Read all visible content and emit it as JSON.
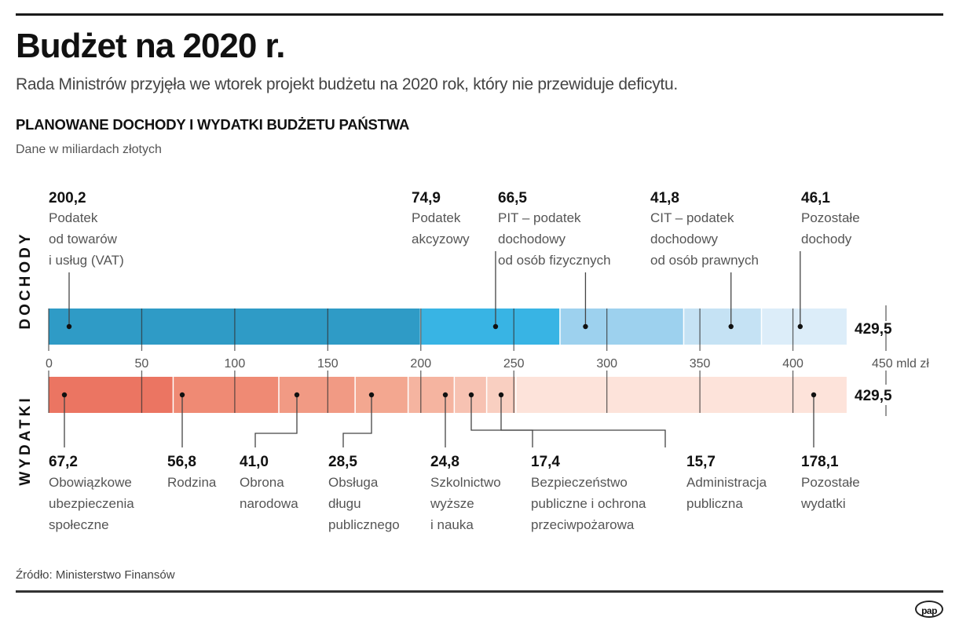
{
  "header": {
    "title": "Budżet na 2020 r.",
    "subtitle": "Rada Ministrów przyjęła we wtorek projekt budżetu na 2020 rok, który nie przewiduje deficytu."
  },
  "footer": {
    "source": "Źródło: Ministerstwo Finansów",
    "logo": "pap"
  },
  "chart_data": {
    "type": "bar",
    "orientation": "horizontal-stacked",
    "title": "PLANOWANE DOCHODY I WYDATKI BUDŻETU PAŃSTWA",
    "subtitle": "Dane w miliardach złotych",
    "xlim": [
      0,
      450
    ],
    "x_ticks": [
      0,
      50,
      100,
      150,
      200,
      250,
      300,
      350,
      400,
      450
    ],
    "x_tick_labels": [
      "0",
      "50",
      "100",
      "150",
      "200",
      "250",
      "300",
      "350",
      "400",
      "450 mld zł"
    ],
    "unit": "mld zł",
    "series": [
      {
        "name": "DOCHODY",
        "total": 429.5,
        "total_label": "429,5",
        "segments": [
          {
            "value": 200.2,
            "value_label": "200,2",
            "label_lines": [
              "Podatek",
              "od towarów",
              "i usług (VAT)"
            ],
            "color": "#2f9bc6"
          },
          {
            "value": 74.9,
            "value_label": "74,9",
            "label_lines": [
              "Podatek",
              "akcyzowy"
            ],
            "color": "#38b4e4"
          },
          {
            "value": 66.5,
            "value_label": "66,5",
            "label_lines": [
              "PIT – podatek",
              "dochodowy",
              "od osób fizycznych"
            ],
            "color": "#9dd1ee"
          },
          {
            "value": 41.8,
            "value_label": "41,8",
            "label_lines": [
              "CIT – podatek",
              "dochodowy",
              "od osób prawnych"
            ],
            "color": "#c5e2f4"
          },
          {
            "value": 46.1,
            "value_label": "46,1",
            "label_lines": [
              "Pozostałe",
              "dochody"
            ],
            "color": "#dcedf9"
          }
        ]
      },
      {
        "name": "WYDATKI",
        "total": 429.5,
        "total_label": "429,5",
        "segments": [
          {
            "value": 67.2,
            "value_label": "67,2",
            "label_lines": [
              "Obowiązkowe",
              "ubezpieczenia",
              "społeczne"
            ],
            "color": "#eb7562"
          },
          {
            "value": 56.8,
            "value_label": "56,8",
            "label_lines": [
              "Rodzina"
            ],
            "color": "#ef8a74"
          },
          {
            "value": 41.0,
            "value_label": "41,0",
            "label_lines": [
              "Obrona",
              "narodowa"
            ],
            "color": "#f19a84"
          },
          {
            "value": 28.5,
            "value_label": "28,5",
            "label_lines": [
              "Obsługa",
              "długu",
              "publicznego"
            ],
            "color": "#f3a790"
          },
          {
            "value": 24.8,
            "value_label": "24,8",
            "label_lines": [
              "Szkolnictwo",
              "wyższe",
              "i nauka"
            ],
            "color": "#f5b4a0"
          },
          {
            "value": 17.4,
            "value_label": "17,4",
            "label_lines": [
              "Bezpieczeństwo",
              "publiczne i ochrona",
              "przeciwpożarowa"
            ],
            "color": "#f7c2b2"
          },
          {
            "value": 15.7,
            "value_label": "15,7",
            "label_lines": [
              "Administracja",
              "publiczna"
            ],
            "color": "#f9cfc1"
          },
          {
            "value": 178.1,
            "value_label": "178,1",
            "label_lines": [
              "Pozostałe",
              "wydatki"
            ],
            "color": "#fde3da"
          }
        ]
      }
    ],
    "grid": true,
    "legend": "none"
  }
}
